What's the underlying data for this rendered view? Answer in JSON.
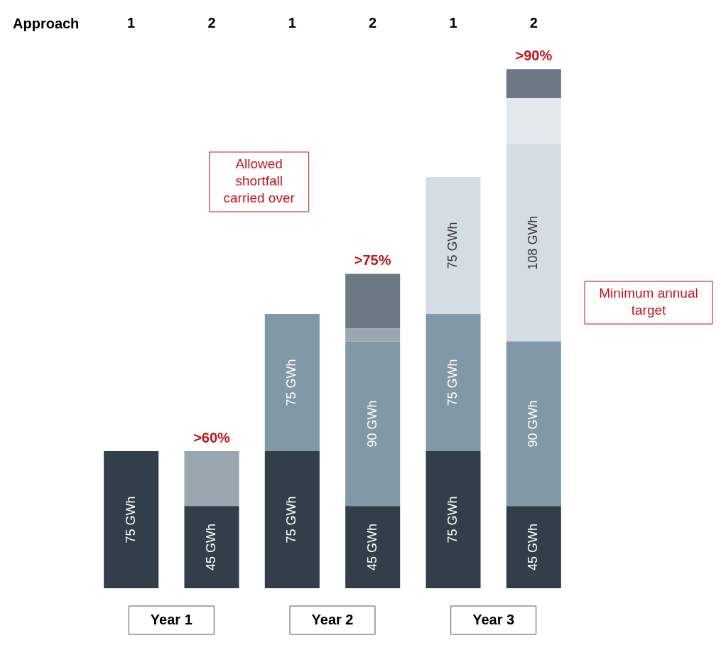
{
  "chart_data": {
    "type": "bar",
    "stacked": true,
    "categories": [
      "1",
      "2",
      "1",
      "2",
      "1",
      "2"
    ],
    "series": [
      {
        "color": "#323f4b",
        "values": [
          75,
          45,
          75,
          45,
          75,
          45
        ],
        "value_labels": [
          "75 GWh",
          "45 GWh",
          "75 GWh",
          "45 GWh",
          "75 GWh",
          "45 GWh"
        ]
      },
      {
        "color": "#8198a9",
        "values": [
          null,
          null,
          75,
          90,
          75,
          90
        ],
        "value_labels": [
          null,
          null,
          "75 GWh",
          "90 GWh",
          "75 GWh",
          "90 GWh"
        ]
      },
      {
        "color": "#d5dde4",
        "values": [
          null,
          null,
          null,
          null,
          75,
          108
        ],
        "value_labels": [
          null,
          null,
          null,
          null,
          "75 GWh",
          "108 GWh"
        ]
      },
      {
        "color": "#e3e8ed",
        "values": [
          null,
          null,
          null,
          null,
          null,
          25
        ]
      },
      {
        "color": "#9aa6b0",
        "values": [
          null,
          30,
          null,
          7,
          null,
          null
        ]
      },
      {
        "color": "#6c7984",
        "values": [
          null,
          null,
          null,
          30,
          null,
          16
        ]
      }
    ],
    "annotations": [
      "Approach",
      "Year 1",
      "Year 2",
      "Year 3",
      "Allowed shortfall carried over",
      "Minimum annual target",
      ">60%",
      ">75%",
      ">90%"
    ],
    "grid": false,
    "legend": false
  }
}
